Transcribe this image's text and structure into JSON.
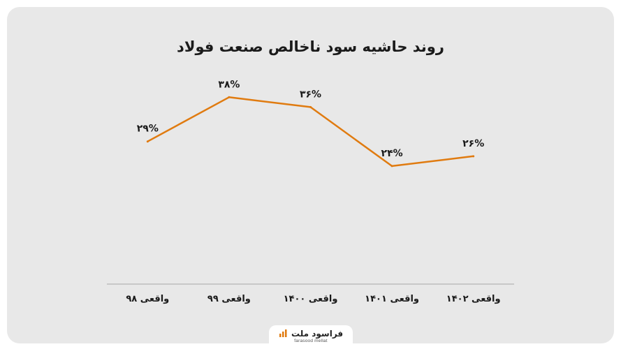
{
  "chart_data": {
    "type": "line",
    "title": "روند حاشیه سود ناخالص صنعت فولاد",
    "xlabel": "",
    "ylabel": "",
    "categories": [
      "واقعی ۹۸",
      "واقعی ۹۹",
      "واقعی ۱۴۰۰",
      "واقعی ۱۴۰۱",
      "واقعی ۱۴۰۲"
    ],
    "series": [
      {
        "values": [
          29,
          38,
          36,
          24,
          26
        ],
        "labels": [
          "۲۹%",
          "۳۸%",
          "۳۶%",
          "۲۴%",
          "۲۶%"
        ],
        "color": "#e07b10"
      }
    ],
    "ylim": [
      0,
      45
    ],
    "grid": false,
    "legend": "none"
  },
  "brand": {
    "name": "فراسود ملت",
    "sub": "farasood mellat",
    "accent": "#e07b10"
  }
}
